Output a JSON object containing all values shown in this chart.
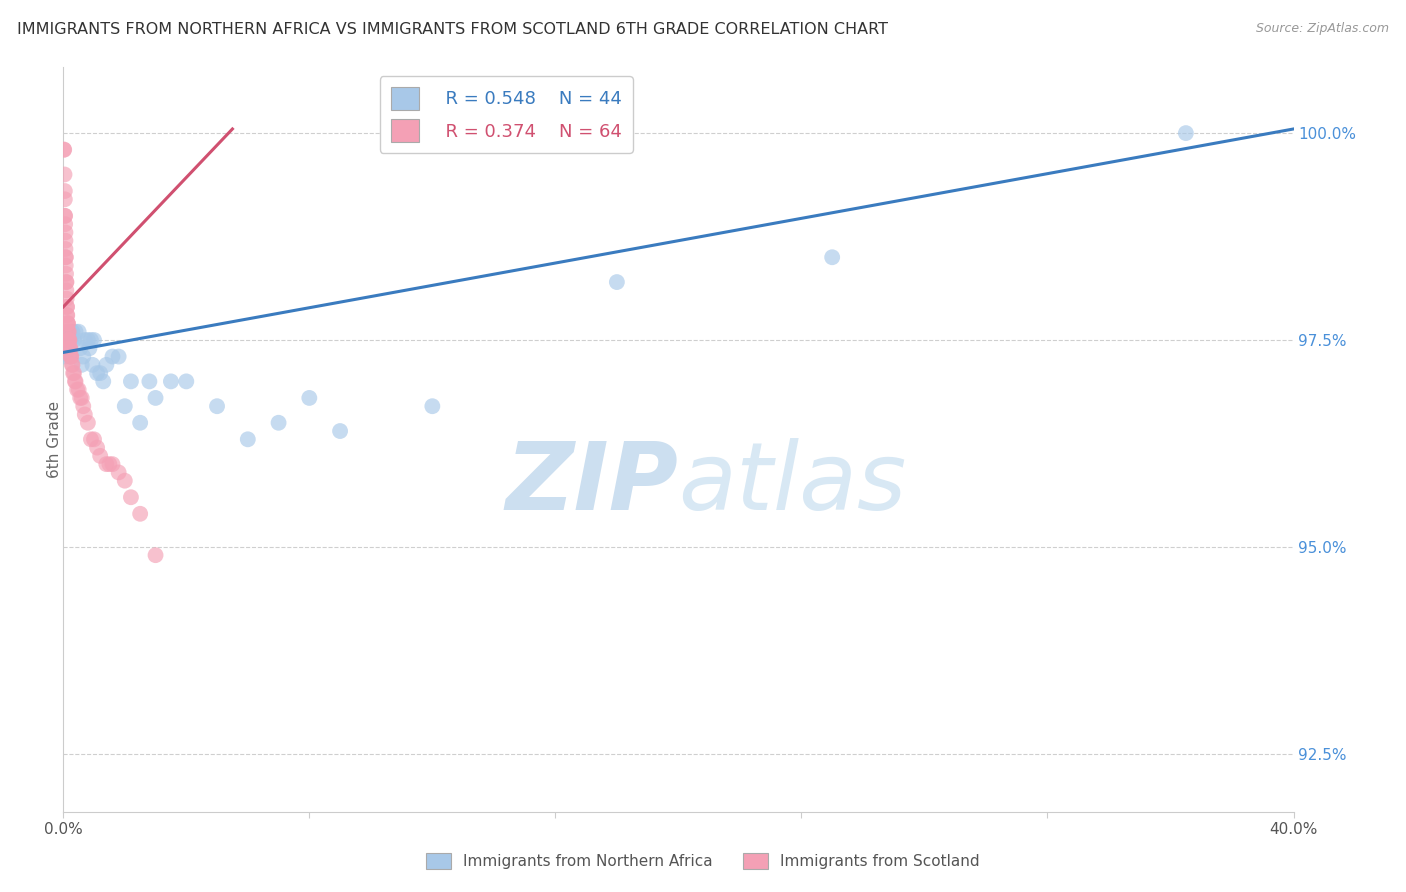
{
  "title": "IMMIGRANTS FROM NORTHERN AFRICA VS IMMIGRANTS FROM SCOTLAND 6TH GRADE CORRELATION CHART",
  "source": "Source: ZipAtlas.com",
  "ylabel": "6th Grade",
  "right_yticks": [
    92.5,
    95.0,
    97.5,
    100.0
  ],
  "right_ytick_labels": [
    "92.5%",
    "95.0%",
    "97.5%",
    "100.0%"
  ],
  "xmin": 0.0,
  "xmax": 40.0,
  "ymin": 91.8,
  "ymax": 100.8,
  "series_blue": {
    "label": "Immigrants from Northern Africa",
    "color": "#a8c8e8",
    "R": 0.548,
    "N": 44,
    "x": [
      0.05,
      0.08,
      0.1,
      0.15,
      0.2,
      0.22,
      0.25,
      0.28,
      0.3,
      0.35,
      0.4,
      0.5,
      0.55,
      0.6,
      0.65,
      0.7,
      0.8,
      0.85,
      0.9,
      0.95,
      1.0,
      1.1,
      1.2,
      1.3,
      1.4,
      1.6,
      1.8,
      2.0,
      2.2,
      2.5,
      2.8,
      3.0,
      3.5,
      4.0,
      5.0,
      6.0,
      7.0,
      8.0,
      9.0,
      12.0,
      18.0,
      25.0,
      36.5,
      0.05
    ],
    "y": [
      97.4,
      97.5,
      97.5,
      97.5,
      97.3,
      97.6,
      97.5,
      97.6,
      97.6,
      97.5,
      97.6,
      97.6,
      97.4,
      97.2,
      97.3,
      97.5,
      97.5,
      97.4,
      97.5,
      97.2,
      97.5,
      97.1,
      97.1,
      97.0,
      97.2,
      97.3,
      97.3,
      96.7,
      97.0,
      96.5,
      97.0,
      96.8,
      97.0,
      97.0,
      96.7,
      96.3,
      96.5,
      96.8,
      96.4,
      96.7,
      98.2,
      98.5,
      100.0,
      97.3
    ]
  },
  "series_pink": {
    "label": "Immigrants from Scotland",
    "color": "#f4a0b5",
    "R": 0.374,
    "N": 64,
    "x": [
      0.02,
      0.03,
      0.04,
      0.05,
      0.05,
      0.06,
      0.06,
      0.07,
      0.07,
      0.08,
      0.08,
      0.09,
      0.1,
      0.1,
      0.11,
      0.12,
      0.12,
      0.13,
      0.14,
      0.15,
      0.15,
      0.16,
      0.17,
      0.18,
      0.18,
      0.19,
      0.2,
      0.2,
      0.22,
      0.23,
      0.24,
      0.25,
      0.26,
      0.28,
      0.3,
      0.32,
      0.35,
      0.38,
      0.4,
      0.45,
      0.5,
      0.55,
      0.6,
      0.65,
      0.7,
      0.8,
      0.9,
      1.0,
      1.1,
      1.2,
      1.4,
      1.5,
      1.6,
      1.8,
      2.0,
      2.2,
      2.5,
      3.0,
      0.05,
      0.07,
      0.08,
      0.1,
      0.12,
      0.15
    ],
    "y": [
      99.8,
      99.8,
      99.5,
      99.3,
      99.2,
      99.0,
      98.9,
      98.8,
      98.6,
      98.5,
      98.4,
      98.3,
      98.2,
      98.1,
      98.0,
      97.9,
      97.8,
      97.8,
      97.7,
      97.6,
      97.7,
      97.6,
      97.5,
      97.5,
      97.6,
      97.5,
      97.4,
      97.5,
      97.4,
      97.4,
      97.3,
      97.3,
      97.3,
      97.2,
      97.2,
      97.1,
      97.1,
      97.0,
      97.0,
      96.9,
      96.9,
      96.8,
      96.8,
      96.7,
      96.6,
      96.5,
      96.3,
      96.3,
      96.2,
      96.1,
      96.0,
      96.0,
      96.0,
      95.9,
      95.8,
      95.6,
      95.4,
      94.9,
      99.0,
      98.7,
      98.5,
      98.2,
      97.9,
      97.7
    ]
  },
  "blue_line_x0": 0.0,
  "blue_line_y0": 97.35,
  "blue_line_x1": 40.0,
  "blue_line_y1": 100.05,
  "pink_line_x0": 0.0,
  "pink_line_y0": 97.9,
  "pink_line_x1": 5.5,
  "pink_line_y1": 100.05,
  "blue_line_color": "#3a7bbf",
  "pink_line_color": "#d05070",
  "watermark_zip": "ZIP",
  "watermark_atlas": "atlas",
  "watermark_color": "#ccdff0",
  "legend_R_blue": "R = 0.548",
  "legend_N_blue": "N = 44",
  "legend_R_pink": "R = 0.374",
  "legend_N_pink": "N = 64",
  "background_color": "#ffffff",
  "grid_color": "#bbbbbb"
}
